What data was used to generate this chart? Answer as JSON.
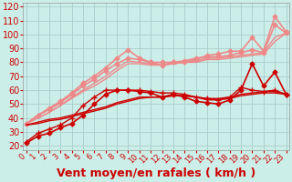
{
  "xlabel": "Vent moyen/en rafales ( km/h )",
  "background_color": "#cceee8",
  "grid_color": "#aacccc",
  "yticks": [
    20,
    30,
    40,
    50,
    60,
    70,
    80,
    90,
    100,
    110,
    120
  ],
  "ylim": [
    17,
    123
  ],
  "xlim": [
    -0.3,
    23.3
  ],
  "xticks": [
    0,
    1,
    2,
    3,
    4,
    5,
    6,
    7,
    8,
    9,
    10,
    11,
    12,
    13,
    14,
    15,
    16,
    17,
    18,
    19,
    20,
    21,
    22,
    23
  ],
  "series": [
    {
      "x": [
        0,
        1,
        2,
        3,
        4,
        5,
        6,
        7,
        8,
        9,
        10,
        11,
        12,
        13,
        14,
        15,
        16,
        17,
        18,
        19,
        20,
        21,
        22,
        23
      ],
      "y": [
        22,
        27,
        29,
        33,
        36,
        42,
        50,
        57,
        60,
        60,
        59,
        58,
        55,
        57,
        55,
        52,
        51,
        50,
        53,
        60,
        79,
        63,
        73,
        57
      ],
      "color": "#cc0000",
      "marker": "D",
      "markersize": 2.5,
      "linewidth": 1.2,
      "alpha": 1.0,
      "zorder": 5
    },
    {
      "x": [
        0,
        1,
        2,
        3,
        4,
        5,
        6,
        7,
        8,
        9,
        10,
        11,
        12,
        13,
        14,
        15,
        16,
        17,
        18,
        19,
        20,
        21,
        22,
        23
      ],
      "y": [
        23,
        29,
        32,
        35,
        40,
        49,
        55,
        60,
        60,
        60,
        60,
        59,
        58,
        58,
        57,
        55,
        54,
        53,
        55,
        62,
        60,
        59,
        60,
        57
      ],
      "color": "#cc0000",
      "marker": "+",
      "markersize": 4,
      "linewidth": 1.0,
      "alpha": 1.0,
      "zorder": 5
    },
    {
      "x": [
        0,
        1,
        2,
        3,
        4,
        5,
        6,
        7,
        8,
        9,
        10,
        11,
        12,
        13,
        14,
        15,
        16,
        17,
        18,
        19,
        20,
        21,
        22,
        23
      ],
      "y": [
        35,
        37,
        39,
        40,
        42,
        44,
        46,
        48,
        51,
        53,
        55,
        55,
        55,
        56,
        56,
        55,
        54,
        54,
        55,
        57,
        58,
        59,
        59,
        57
      ],
      "color": "#cc0000",
      "marker": null,
      "markersize": 0,
      "linewidth": 1.0,
      "alpha": 1.0,
      "zorder": 4
    },
    {
      "x": [
        0,
        1,
        2,
        3,
        4,
        5,
        6,
        7,
        8,
        9,
        10,
        11,
        12,
        13,
        14,
        15,
        16,
        17,
        18,
        19,
        20,
        21,
        22,
        23
      ],
      "y": [
        35,
        36,
        38,
        39,
        41,
        43,
        45,
        47,
        50,
        52,
        54,
        55,
        55,
        56,
        56,
        55,
        53,
        53,
        54,
        56,
        57,
        58,
        58,
        57
      ],
      "color": "#cc0000",
      "marker": null,
      "markersize": 0,
      "linewidth": 1.0,
      "alpha": 1.0,
      "zorder": 4
    },
    {
      "x": [
        0,
        1,
        2,
        3,
        4,
        5,
        6,
        7,
        8,
        9,
        10,
        11,
        12,
        13,
        14,
        15,
        16,
        17,
        18,
        19,
        20,
        21,
        22,
        23
      ],
      "y": [
        36,
        42,
        47,
        52,
        58,
        65,
        70,
        76,
        83,
        89,
        83,
        80,
        78,
        80,
        80,
        82,
        85,
        86,
        88,
        88,
        98,
        88,
        113,
        102
      ],
      "color": "#ee8888",
      "marker": "D",
      "markersize": 2.5,
      "linewidth": 1.2,
      "alpha": 1.0,
      "zorder": 3
    },
    {
      "x": [
        0,
        1,
        2,
        3,
        4,
        5,
        6,
        7,
        8,
        9,
        10,
        11,
        12,
        13,
        14,
        15,
        16,
        17,
        18,
        19,
        20,
        21,
        22,
        23
      ],
      "y": [
        36,
        42,
        46,
        51,
        57,
        63,
        68,
        74,
        79,
        83,
        82,
        80,
        80,
        80,
        81,
        83,
        84,
        84,
        85,
        87,
        89,
        87,
        107,
        101
      ],
      "color": "#ee8888",
      "marker": "D",
      "markersize": 2.5,
      "linewidth": 1.2,
      "alpha": 1.0,
      "zorder": 3
    },
    {
      "x": [
        0,
        1,
        2,
        3,
        4,
        5,
        6,
        7,
        8,
        9,
        10,
        11,
        12,
        13,
        14,
        15,
        16,
        17,
        18,
        19,
        20,
        21,
        22,
        23
      ],
      "y": [
        36,
        40,
        44,
        49,
        55,
        60,
        65,
        70,
        76,
        81,
        80,
        79,
        78,
        79,
        80,
        81,
        83,
        83,
        84,
        85,
        86,
        87,
        98,
        101
      ],
      "color": "#ee8888",
      "marker": null,
      "markersize": 0,
      "linewidth": 1.0,
      "alpha": 1.0,
      "zorder": 2
    },
    {
      "x": [
        0,
        1,
        2,
        3,
        4,
        5,
        6,
        7,
        8,
        9,
        10,
        11,
        12,
        13,
        14,
        15,
        16,
        17,
        18,
        19,
        20,
        21,
        22,
        23
      ],
      "y": [
        36,
        40,
        44,
        49,
        54,
        59,
        63,
        68,
        74,
        79,
        79,
        78,
        78,
        79,
        80,
        80,
        82,
        82,
        83,
        84,
        85,
        86,
        95,
        101
      ],
      "color": "#ee8888",
      "marker": null,
      "markersize": 0,
      "linewidth": 1.0,
      "alpha": 1.0,
      "zorder": 2
    }
  ],
  "xlabel_color": "#cc0000",
  "xlabel_fontsize": 9,
  "tick_color": "#cc0000",
  "tick_fontsize": 6,
  "ytick_fontsize": 7
}
